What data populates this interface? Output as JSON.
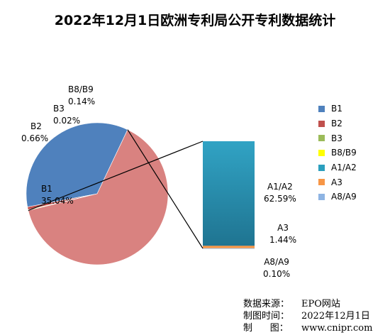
{
  "chart_data": {
    "type": "pie",
    "title": "2022年12月1日欧洲专利局公开专利数据统计",
    "slices": [
      {
        "label": "B1",
        "value": 35.04,
        "value_text": "35.04%",
        "color": "#4f81bd"
      },
      {
        "label": "B2",
        "value": 0.66,
        "value_text": "0.66%",
        "color": "#c0504d"
      },
      {
        "label": "B3",
        "value": 0.02,
        "value_text": "0.02%",
        "color": "#9bbb59"
      },
      {
        "label": "B8/B9",
        "value": 0.14,
        "value_text": "0.14%",
        "color": "#ffff00"
      },
      {
        "label": "A1/A2",
        "value": 62.59,
        "value_text": "62.59%",
        "color": "#2b9fbe"
      },
      {
        "label": "A3",
        "value": 1.44,
        "value_text": "1.44%",
        "color": "#f79646"
      },
      {
        "label": "A8/A9",
        "value": 0.1,
        "value_text": "0.10%",
        "color": "#8eb4e3"
      }
    ],
    "pie_of_pie": {
      "secondary_type": "bar",
      "secondary_members": [
        "A1/A2",
        "A3",
        "A8/A9"
      ],
      "other_slice_color": "#d98280"
    },
    "legend": {
      "placement": "right",
      "entries": [
        "B1",
        "B2",
        "B3",
        "B8/B9",
        "A1/A2",
        "A3",
        "A8/A9"
      ]
    }
  },
  "credits": [
    {
      "key": "数据来源：",
      "value": "EPO网站"
    },
    {
      "key": "制图时间：",
      "value": "2022年12月1日"
    },
    {
      "key": "制      图：",
      "value": "www.cnipr.com"
    }
  ]
}
